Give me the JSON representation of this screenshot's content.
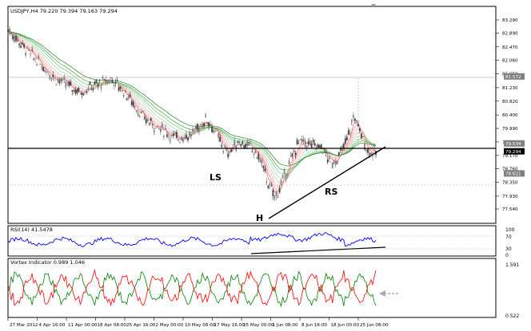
{
  "main_chart": {
    "header": "USDJPY,H4  79.220 79.394 79.163 79.294",
    "price_ticks": [
      "83.290",
      "82.890",
      "82.470",
      "82.060",
      "81.650",
      "81.230",
      "80.820",
      "80.400",
      "79.990",
      "79.580",
      "79.170",
      "78.760",
      "78.350",
      "77.930",
      "77.540"
    ],
    "price_tags": [
      {
        "label": "81.572",
        "value": 81.572,
        "color": "#808080"
      },
      {
        "label": "79.534",
        "value": 79.534,
        "color": "#808080"
      },
      {
        "label": "79.294",
        "value": 79.294,
        "color": "#000000"
      },
      {
        "label": "78.621",
        "value": 78.621,
        "color": "#808080"
      }
    ],
    "pattern_labels": {
      "left_shoulder": "LS",
      "head": "H",
      "right_shoulder": "RS"
    }
  },
  "rsi_panel": {
    "header": "RSI(14) 41.5478",
    "ticks": [
      "100",
      "70",
      "30",
      "0"
    ]
  },
  "vortex_panel": {
    "header": "Vortex Indicator 0.989 1.046",
    "ticks": [
      "1.591",
      "0.522"
    ]
  },
  "time_axis": {
    "labels": [
      "27 Mar 2012",
      "4 Apr 16:00",
      "11 Apr 00:00",
      "18 Apr 08:00",
      "25 Apr 16:00",
      "2 May 00:00",
      "10 May 08:00",
      "17 May 16:00",
      "25 May 00:00",
      "1 Jun 08:00",
      "8 Jun 16:00",
      "18 Jun 00:00",
      "25 Jun 08:00"
    ]
  },
  "colors": {
    "bull_candle": "#808080",
    "bear_candle": "#404040",
    "rsi_line": "#0000ff",
    "vortex_plus": "#008000",
    "vortex_minus": "#ff0000",
    "annotation": "#000000"
  }
}
